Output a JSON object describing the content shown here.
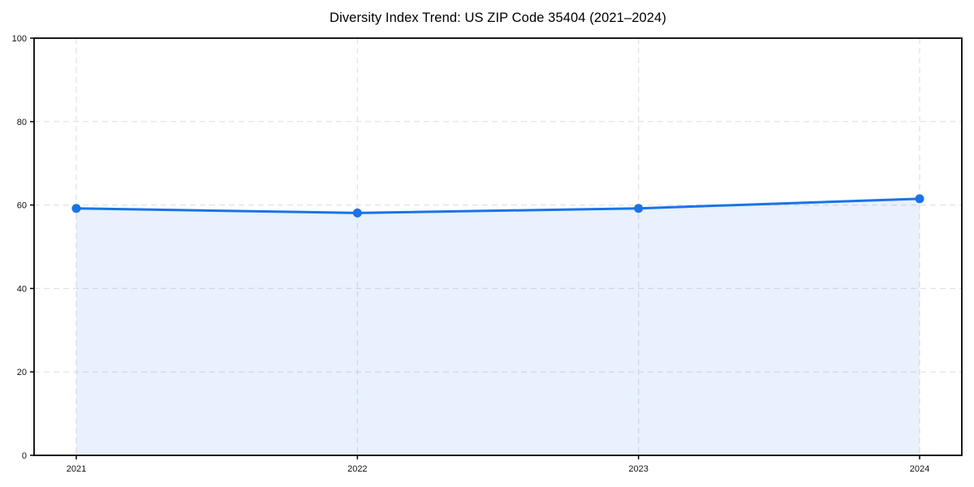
{
  "chart_data": {
    "type": "area",
    "title": "Diversity Index Trend: US ZIP Code 35404 (2021–2024)",
    "categories": [
      "2021",
      "2022",
      "2023",
      "2024"
    ],
    "series": [
      {
        "name": "Diversity Index",
        "values": [
          59.2,
          58.1,
          59.2,
          61.5
        ]
      }
    ],
    "xlabel": "",
    "ylabel": "",
    "ylim": [
      0,
      100
    ],
    "yticks": [
      0,
      20,
      40,
      60,
      80,
      100
    ],
    "grid": true,
    "grid_style": "dashed",
    "legend_position": "none",
    "marker": "circle",
    "colors": {
      "line": "#1a73e8",
      "marker": "#1a73e8",
      "area_fill": "rgba(26,115,232,0.10)",
      "gridline": "#e1e1e1",
      "axis_frame": "#000000",
      "tick_label": "#111111",
      "title": "#000000",
      "background": "#ffffff"
    }
  }
}
